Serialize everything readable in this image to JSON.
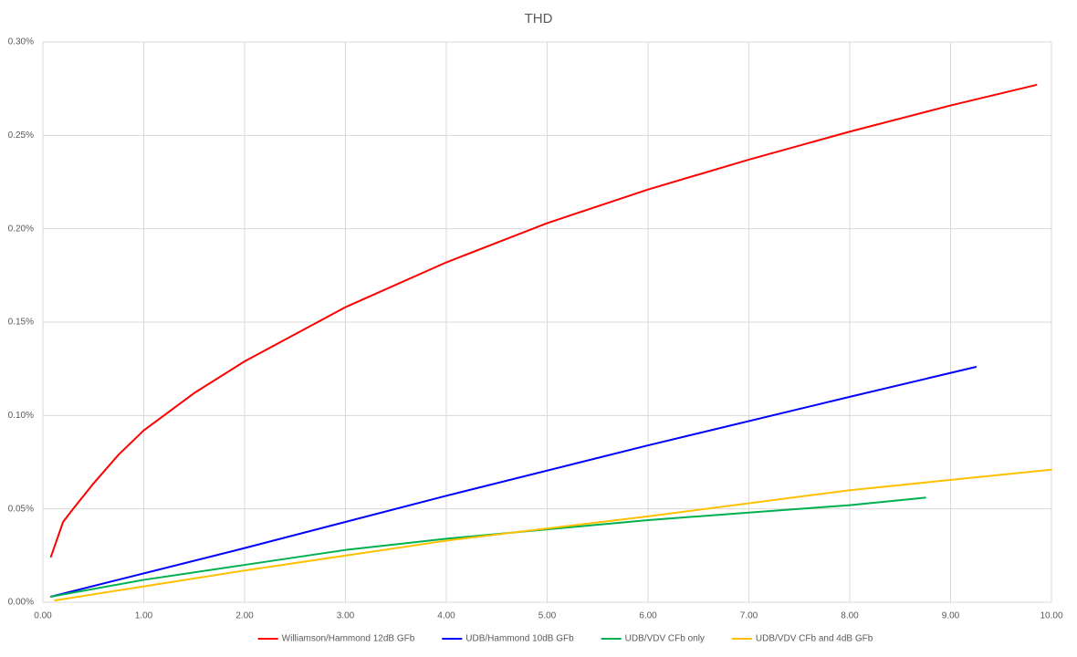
{
  "chart_data": {
    "type": "line",
    "title": "THD",
    "xlim": [
      0,
      10
    ],
    "xticks": [
      {
        "value": 0,
        "label": "0.00"
      },
      {
        "value": 1,
        "label": "1.00"
      },
      {
        "value": 2,
        "label": "2.00"
      },
      {
        "value": 3,
        "label": "3.00"
      },
      {
        "value": 4,
        "label": "4.00"
      },
      {
        "value": 5,
        "label": "5.00"
      },
      {
        "value": 6,
        "label": "6.00"
      },
      {
        "value": 7,
        "label": "7.00"
      },
      {
        "value": 8,
        "label": "8.00"
      },
      {
        "value": 9,
        "label": "9.00"
      },
      {
        "value": 10,
        "label": "10.00"
      }
    ],
    "ylim": [
      0,
      0.3
    ],
    "yticks": [
      {
        "value": 0,
        "label": "0.00%"
      },
      {
        "value": 0.05,
        "label": "0.05%"
      },
      {
        "value": 0.1,
        "label": "0.10%"
      },
      {
        "value": 0.15,
        "label": "0.15%"
      },
      {
        "value": 0.2,
        "label": "0.20%"
      },
      {
        "value": 0.25,
        "label": "0.25%"
      },
      {
        "value": 0.3,
        "label": "0.30%"
      }
    ],
    "grid": true,
    "legend": "bottom",
    "series": [
      {
        "name": "Williamson/Hammond 12dB GFb",
        "color": "#ff0000",
        "x": [
          0.08,
          0.2,
          0.3,
          0.5,
          0.75,
          1,
          1.5,
          2,
          3,
          4,
          5,
          6,
          7,
          8,
          9,
          9.85
        ],
        "values": [
          0.0244,
          0.043,
          0.05,
          0.0635,
          0.079,
          0.092,
          0.112,
          0.129,
          0.158,
          0.182,
          0.203,
          0.221,
          0.237,
          0.252,
          0.266,
          0.277
        ]
      },
      {
        "name": "UDB/Hammond 10dB GFb",
        "color": "#0000ff",
        "x": [
          0.08,
          2,
          4,
          6,
          8,
          9.25
        ],
        "values": [
          0.003,
          0.029,
          0.057,
          0.084,
          0.11,
          0.126
        ]
      },
      {
        "name": "UDB/VDV CFb only",
        "color": "#00b050",
        "x": [
          0.08,
          1,
          2,
          3,
          4,
          5,
          6,
          7,
          8,
          8.75
        ],
        "values": [
          0.003,
          0.012,
          0.02,
          0.028,
          0.034,
          0.039,
          0.044,
          0.048,
          0.052,
          0.056
        ]
      },
      {
        "name": "UDB/VDV CFb and 4dB GFb",
        "color": "#ffc000",
        "x": [
          0.12,
          2,
          4,
          6,
          8,
          10
        ],
        "values": [
          0.001,
          0.017,
          0.033,
          0.046,
          0.06,
          0.071
        ]
      }
    ]
  }
}
